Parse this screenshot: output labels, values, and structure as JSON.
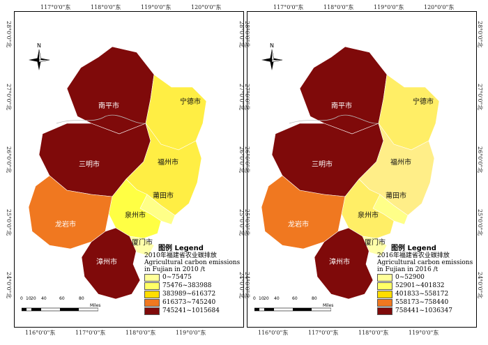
{
  "panels": [
    {
      "legend_title": "图例 Legend",
      "legend_subtitle_cn": "2010年福建省农业碳排放",
      "legend_subtitle_en1": "Agricultural carbon emissions",
      "legend_subtitle_en2": "in Fujian in 2010 /t",
      "classes": [
        {
          "label": "0~75475",
          "color": "#ffff99"
        },
        {
          "label": "75476~383988",
          "color": "#ffff66"
        },
        {
          "label": "383989~616372",
          "color": "#ffdd00"
        },
        {
          "label": "616373~745240",
          "color": "#f07820"
        },
        {
          "label": "745241~1015684",
          "color": "#7f0a0a"
        }
      ],
      "regions": {
        "nanping": {
          "name": "南平市",
          "color": "#7f0a0a"
        },
        "sanming": {
          "name": "三明市",
          "color": "#7f0a0a"
        },
        "longyan": {
          "name": "龙岩市",
          "color": "#f07820"
        },
        "zhangzhou": {
          "name": "漳州市",
          "color": "#7f0a0a"
        },
        "ningde": {
          "name": "宁德市",
          "color": "#ffee44"
        },
        "fuzhou": {
          "name": "福州市",
          "color": "#ffee44"
        },
        "putian": {
          "name": "莆田市",
          "color": "#ffff88"
        },
        "quanzhou": {
          "name": "泉州市",
          "color": "#ffff44"
        },
        "xiamen": {
          "name": "厦门市",
          "color": "#ffffaa"
        }
      }
    },
    {
      "legend_title": "图例 Legend",
      "legend_subtitle_cn": "2016年福建省农业碳排放",
      "legend_subtitle_en1": "Agricultural carbon emissions",
      "legend_subtitle_en2": "in Fujian in 2016 /t",
      "classes": [
        {
          "label": "0~52900",
          "color": "#ffff99"
        },
        {
          "label": "52901~401832",
          "color": "#ffff66"
        },
        {
          "label": "401833~558172",
          "color": "#ffdd00"
        },
        {
          "label": "558173~758440",
          "color": "#f07820"
        },
        {
          "label": "758441~1036347",
          "color": "#7f0a0a"
        }
      ],
      "regions": {
        "nanping": {
          "name": "南平市",
          "color": "#7f0a0a"
        },
        "sanming": {
          "name": "三明市",
          "color": "#7f0a0a"
        },
        "longyan": {
          "name": "龙岩市",
          "color": "#f07820"
        },
        "zhangzhou": {
          "name": "漳州市",
          "color": "#7f0a0a"
        },
        "ningde": {
          "name": "宁德市",
          "color": "#ffee66"
        },
        "fuzhou": {
          "name": "福州市",
          "color": "#ffee88"
        },
        "putian": {
          "name": "莆田市",
          "color": "#ffff88"
        },
        "quanzhou": {
          "name": "泉州市",
          "color": "#ffee66"
        },
        "xiamen": {
          "name": "厦门市",
          "color": "#ffffaa"
        }
      }
    }
  ],
  "top_ticks": [
    "117°0'0\"东",
    "118°0'0\"东",
    "119°0'0\"东",
    "120°0'0\"东"
  ],
  "bottom_ticks": [
    "116°0'0\"东",
    "117°0'0\"东",
    "118°0'0\"东",
    "119°0'0\"东"
  ],
  "side_ticks": [
    "28°0'0\"北",
    "27°0'0\"北",
    "26°0'0\"北",
    "25°0'0\"北",
    "24°0'0\"北"
  ],
  "north_label": "N",
  "scale_labels": [
    "0",
    "10",
    "20",
    "40",
    "60",
    "80"
  ],
  "scale_unit": "Miles"
}
